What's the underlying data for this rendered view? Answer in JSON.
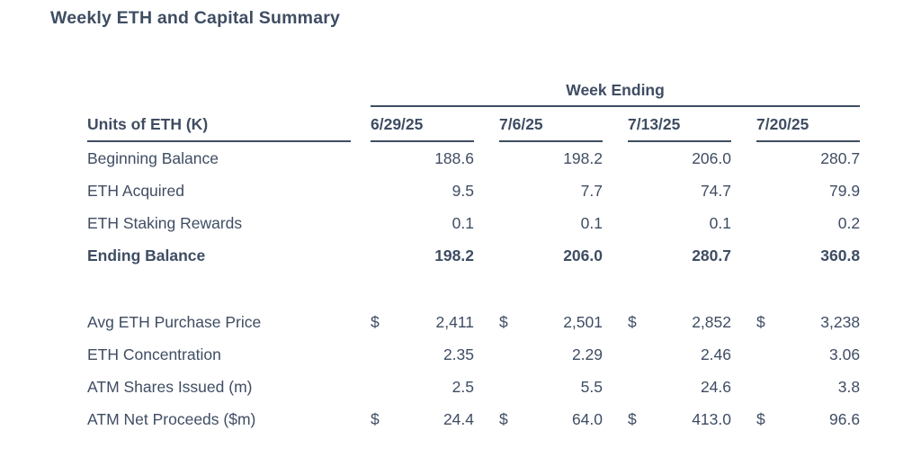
{
  "page": {
    "title": "Weekly ETH and Capital Summary"
  },
  "table": {
    "group_header": "Week Ending",
    "corner_header": "Units of ETH (K)",
    "currency_symbol": "$",
    "week_columns": [
      "6/29/25",
      "7/6/25",
      "7/13/25",
      "7/20/25"
    ],
    "eth_rows": [
      {
        "label": "Beginning Balance",
        "values": [
          "188.6",
          "198.2",
          "206.0",
          "280.7"
        ]
      },
      {
        "label": "ETH Acquired",
        "values": [
          "9.5",
          "7.7",
          "74.7",
          "79.9"
        ]
      },
      {
        "label": "ETH Staking Rewards",
        "values": [
          "0.1",
          "0.1",
          "0.1",
          "0.2"
        ]
      },
      {
        "label": "Ending Balance",
        "values": [
          "198.2",
          "206.0",
          "280.7",
          "360.8"
        ]
      }
    ],
    "capital_rows": [
      {
        "label": "Avg ETH Purchase Price",
        "currency": true,
        "values": [
          "2,411",
          "2,501",
          "2,852",
          "3,238"
        ]
      },
      {
        "label": "ETH Concentration",
        "currency": false,
        "values": [
          "2.35",
          "2.29",
          "2.46",
          "3.06"
        ]
      },
      {
        "label": "ATM Shares Issued (m)",
        "currency": false,
        "values": [
          "2.5",
          "5.5",
          "24.6",
          "3.8"
        ]
      },
      {
        "label": "ATM Net Proceeds ($m)",
        "currency": true,
        "values": [
          "24.4",
          "64.0",
          "413.0",
          "96.6"
        ]
      }
    ]
  },
  "colors": {
    "text": "#3F4D63",
    "line": "#3F4D63",
    "background": "#FFFFFF"
  },
  "chart_data": {
    "type": "table",
    "title": "Weekly ETH and Capital Summary",
    "column_group_header": "Week Ending",
    "columns": [
      "6/29/25",
      "7/6/25",
      "7/13/25",
      "7/20/25"
    ],
    "row_header_label": "Units of ETH (K)",
    "rows": [
      {
        "label": "Beginning Balance",
        "unit": "K ETH",
        "values": [
          188.6,
          198.2,
          206.0,
          280.7
        ]
      },
      {
        "label": "ETH Acquired",
        "unit": "K ETH",
        "values": [
          9.5,
          7.7,
          74.7,
          79.9
        ]
      },
      {
        "label": "ETH Staking Rewards",
        "unit": "K ETH",
        "values": [
          0.1,
          0.1,
          0.1,
          0.2
        ]
      },
      {
        "label": "Ending Balance",
        "unit": "K ETH",
        "values": [
          198.2,
          206.0,
          280.7,
          360.8
        ]
      },
      {
        "label": "Avg ETH Purchase Price",
        "unit": "$",
        "values": [
          2411,
          2501,
          2852,
          3238
        ]
      },
      {
        "label": "ETH Concentration",
        "unit": "",
        "values": [
          2.35,
          2.29,
          2.46,
          3.06
        ]
      },
      {
        "label": "ATM Shares Issued (m)",
        "unit": "m",
        "values": [
          2.5,
          5.5,
          24.6,
          3.8
        ]
      },
      {
        "label": "ATM Net Proceeds ($m)",
        "unit": "$m",
        "values": [
          24.4,
          64.0,
          413.0,
          96.6
        ]
      }
    ]
  }
}
